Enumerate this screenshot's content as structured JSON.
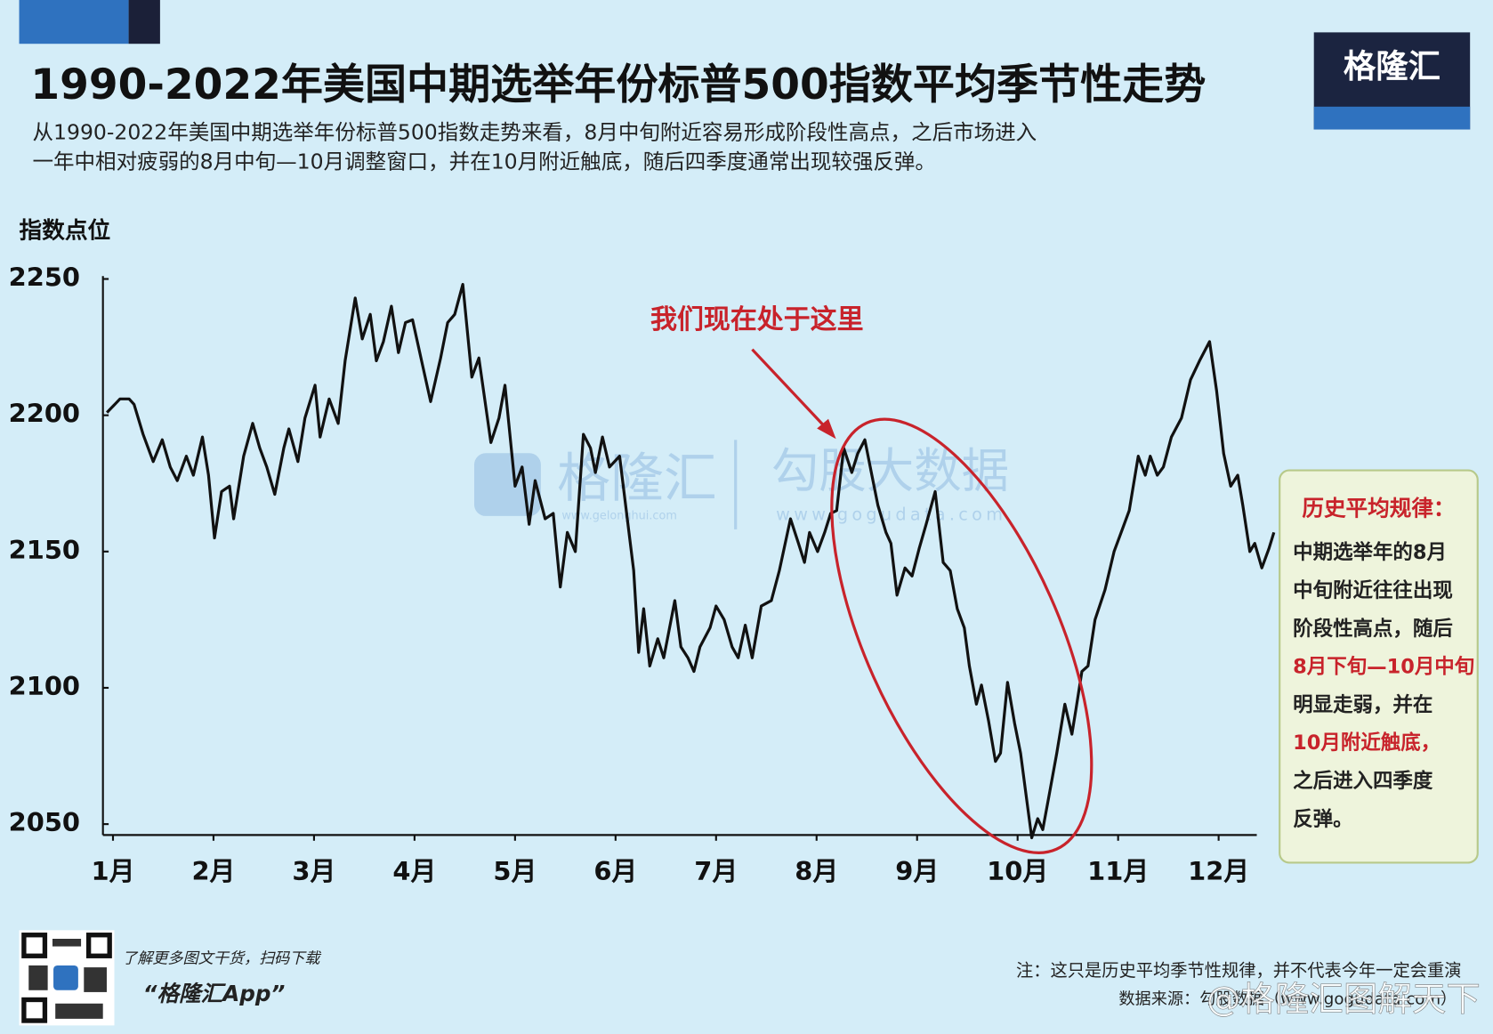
{
  "header": {
    "title": "1990-2022年美国中期选举年份标普500指数平均季节性走势",
    "subtitle": [
      "从1990-2022年美国中期选举年份标普500指数走势来看，8月中旬附近容易形成阶段性高点，之后市场进入",
      "一年中相对疲弱的8月中旬—10月调整窗口，并在10月附近触底，随后四季度通常出现较强反弹。"
    ],
    "logo": "格隆汇"
  },
  "chart_data": {
    "type": "line",
    "y_label": "指数点位",
    "color": "#111111",
    "x": [
      0.94,
      1.07,
      1.16,
      1.21,
      1.3,
      1.4,
      1.49,
      1.57,
      1.64,
      1.73,
      1.8,
      1.89,
      1.95,
      2.01,
      2.08,
      2.16,
      2.2,
      2.3,
      2.39,
      2.46,
      2.53,
      2.61,
      2.7,
      2.75,
      2.84,
      2.91,
      3.01,
      3.06,
      3.15,
      3.24,
      3.31,
      3.41,
      3.48,
      3.56,
      3.62,
      3.69,
      3.77,
      3.84,
      3.91,
      3.98,
      4.07,
      4.16,
      4.26,
      4.33,
      4.4,
      4.48,
      4.57,
      4.64,
      4.76,
      4.84,
      4.9,
      5.0,
      5.07,
      5.14,
      5.2,
      5.3,
      5.38,
      5.45,
      5.52,
      5.6,
      5.68,
      5.75,
      5.8,
      5.87,
      5.94,
      6.04,
      6.13,
      6.18,
      6.23,
      6.28,
      6.34,
      6.42,
      6.48,
      6.59,
      6.65,
      6.72,
      6.78,
      6.84,
      6.94,
      7.0,
      7.08,
      7.16,
      7.22,
      7.29,
      7.36,
      7.45,
      7.55,
      7.63,
      7.74,
      7.82,
      7.88,
      7.93,
      8.01,
      8.08,
      8.14,
      8.2,
      8.27,
      8.35,
      8.41,
      8.48,
      8.55,
      8.61,
      8.69,
      8.74,
      8.8,
      8.88,
      8.95,
      9.02,
      9.09,
      9.18,
      9.26,
      9.33,
      9.4,
      9.47,
      9.52,
      9.59,
      9.64,
      9.71,
      9.78,
      9.83,
      9.9,
      9.97,
      10.03,
      10.09,
      10.14,
      10.2,
      10.25,
      10.32,
      10.39,
      10.47,
      10.54,
      10.58,
      10.64,
      10.7,
      10.77,
      10.87,
      10.96,
      11.04,
      11.11,
      11.2,
      11.27,
      11.32,
      11.39,
      11.45,
      11.53,
      11.63,
      11.72,
      11.81,
      11.91,
      11.98,
      12.05,
      12.12,
      12.19,
      12.24,
      12.31,
      12.36,
      12.43,
      12.5,
      12.55
    ],
    "values": [
      2201,
      2206,
      2206,
      2204,
      2193,
      2183,
      2191,
      2181,
      2176,
      2185,
      2178,
      2192,
      2178,
      2155,
      2172,
      2174,
      2162,
      2185,
      2197,
      2188,
      2181,
      2171,
      2188,
      2195,
      2183,
      2199,
      2211,
      2192,
      2206,
      2197,
      2220,
      2243,
      2228,
      2237,
      2220,
      2227,
      2240,
      2223,
      2234,
      2235,
      2220,
      2205,
      2221,
      2234,
      2237,
      2248,
      2214,
      2221,
      2190,
      2199,
      2211,
      2174,
      2181,
      2160,
      2176,
      2162,
      2164,
      2137,
      2157,
      2150,
      2193,
      2188,
      2179,
      2192,
      2181,
      2185,
      2158,
      2143,
      2113,
      2129,
      2108,
      2118,
      2111,
      2132,
      2115,
      2111,
      2106,
      2115,
      2122,
      2130,
      2125,
      2115,
      2111,
      2123,
      2111,
      2130,
      2132,
      2143,
      2162,
      2153,
      2146,
      2157,
      2150,
      2157,
      2164,
      2165,
      2188,
      2179,
      2186,
      2191,
      2178,
      2167,
      2157,
      2153,
      2134,
      2144,
      2141,
      2151,
      2160,
      2172,
      2146,
      2143,
      2129,
      2122,
      2108,
      2094,
      2101,
      2088,
      2073,
      2076,
      2102,
      2087,
      2076,
      2059,
      2045,
      2052,
      2048,
      2062,
      2076,
      2094,
      2083,
      2092,
      2106,
      2108,
      2125,
      2136,
      2150,
      2158,
      2165,
      2185,
      2178,
      2185,
      2178,
      2181,
      2192,
      2199,
      2213,
      2220,
      2227,
      2209,
      2186,
      2174,
      2178,
      2167,
      2150,
      2153,
      2144,
      2151,
      2157
    ],
    "xlim": [
      0.9,
      12.55
    ],
    "ylim": [
      2046,
      2250
    ],
    "xticks": [
      {
        "value": 1,
        "label": "1月"
      },
      {
        "value": 2,
        "label": "2月"
      },
      {
        "value": 3,
        "label": "3月"
      },
      {
        "value": 4,
        "label": "4月"
      },
      {
        "value": 5,
        "label": "5月"
      },
      {
        "value": 6,
        "label": "6月"
      },
      {
        "value": 7,
        "label": "7月"
      },
      {
        "value": 8,
        "label": "8月"
      },
      {
        "value": 9,
        "label": "9月"
      },
      {
        "value": 10,
        "label": "10月"
      },
      {
        "value": 11,
        "label": "11月"
      },
      {
        "value": 12,
        "label": "12月"
      }
    ],
    "yticks": [
      2050,
      2100,
      2150,
      2200,
      2250
    ],
    "grid": false,
    "annotation": "我们现在处于这里",
    "annotation_color": "#c8232b"
  },
  "callout": {
    "title": "历史平均规律：",
    "title_color": "#c8232b",
    "lines": [
      {
        "text": "中期选举年的8月",
        "color": "#222222"
      },
      {
        "text": "中旬附近往往出现",
        "color": "#222222"
      },
      {
        "text": "阶段性高点，随后",
        "color": "#222222"
      },
      {
        "text": "8月下旬—10月中旬",
        "color": "#c8232b"
      },
      {
        "text": "明显走弱，并在",
        "color": "#222222"
      },
      {
        "text": "10月附近触底，",
        "color": "#c8232b"
      },
      {
        "text": "之后进入四季度",
        "color": "#222222"
      },
      {
        "text": "反弹。",
        "color": "#222222"
      }
    ]
  },
  "watermarks": [
    "格隆汇",
    "www.gelonghui.com",
    "勾股大数据",
    "www.gogudata.com"
  ],
  "footer": {
    "qr_text": "了解更多图文干货，扫码下载",
    "app": "“格隆汇App”",
    "note": "注：这只是历史平均季节性规律，并不代表今年一定会重演",
    "source": "数据来源：勾股数据（www.gogudata.com）",
    "weibo": "@格隆汇图解天下"
  }
}
